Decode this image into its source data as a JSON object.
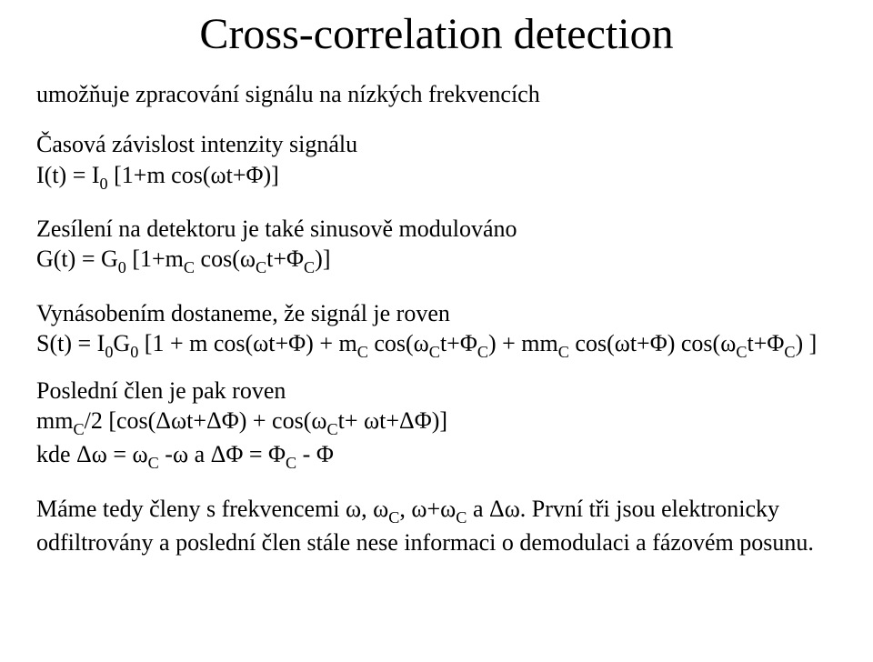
{
  "title": "Cross-correlation detection",
  "p1": {
    "l1": "umožňuje zpracování signálu na nízkých frekvencích"
  },
  "p2": {
    "l1": "Časová závislost intenzity signálu",
    "l2a": "I(t) = I",
    "l2sub": "0",
    "l2b": " [1+m cos(ωt+Φ)]"
  },
  "p3": {
    "l1": "Zesílení na detektoru je také sinusově modulováno",
    "l2a": "G(t) = G",
    "l2s1": "0",
    "l2b": " [1+m",
    "l2s2": "C",
    "l2c": " cos(ω",
    "l2s3": "C",
    "l2d": "t+Φ",
    "l2s4": "C",
    "l2e": ")]"
  },
  "p4": {
    "l1": "Vynásobením dostaneme, že signál je roven",
    "l2a": "S(t) = I",
    "l2s1": "0",
    "l2b": "G",
    "l2s2": "0",
    "l2c": " [1 + m cos(ωt+Φ) + m",
    "l2s3": "C",
    "l2d": " cos(ω",
    "l2s4": "C",
    "l2e": "t+Φ",
    "l2s5": "C",
    "l2f": ") + mm",
    "l2s6": "C",
    "l2g": " cos(ωt+Φ) cos(ω",
    "l2s7": "C",
    "l2h": "t+Φ",
    "l2s8": "C",
    "l2i": ") ]"
  },
  "p5": {
    "l1": "Poslední člen je pak roven",
    "l2a": "mm",
    "l2s1": "C",
    "l2b": "/2 [cos(Δωt+ΔΦ) + cos(ω",
    "l2s2": "C",
    "l2c": "t+ ωt+ΔΦ)]",
    "l3a": "kde Δω = ω",
    "l3s1": "C",
    "l3b": " -ω a ΔΦ = Φ",
    "l3s2": "C",
    "l3c": " - Φ"
  },
  "p6": {
    "l1a": "Máme tedy členy s frekvencemi ω, ω",
    "l1s1": "C",
    "l1b": ", ω+ω",
    "l1s2": "C",
    "l1c": " a Δω. První tři jsou elektronicky odfiltrovány a poslední člen stále nese informaci o demodulaci a fázovém posunu."
  }
}
